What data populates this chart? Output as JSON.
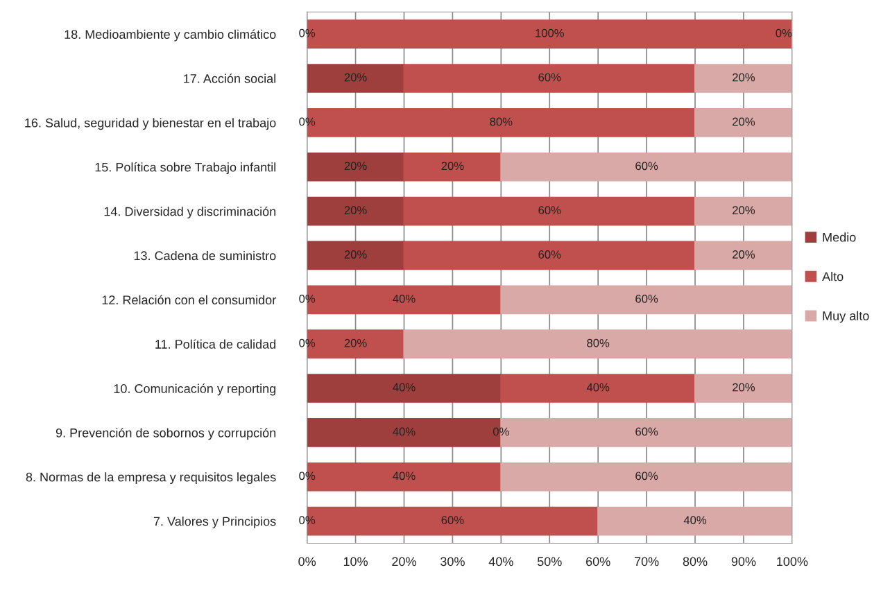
{
  "chart_data": {
    "type": "bar",
    "orientation": "horizontal",
    "stacked": true,
    "categories": [
      "18. Medioambiente y cambio climático",
      "17. Acción social",
      "16. Salud, seguridad y bienestar en el trabajo",
      "15. Política sobre Trabajo infantil",
      "14. Diversidad y discriminación",
      "13. Cadena de suministro",
      "12. Relación con el consumidor",
      "11. Política de calidad",
      "10. Comunicación y reporting",
      "9. Prevención de sobornos y corrupción",
      "8. Normas de la empresa y requisitos legales",
      "7. Valores y Principios"
    ],
    "series": [
      {
        "name": "Medio",
        "color": "#9e3f3d",
        "values": [
          0,
          20,
          0,
          20,
          20,
          20,
          0,
          0,
          40,
          40,
          0,
          0
        ],
        "value_labels": [
          "0%",
          "20%",
          "0%",
          "20%",
          "20%",
          "20%",
          "0%",
          "0%",
          "40%",
          "40%",
          "0%",
          "0%"
        ]
      },
      {
        "name": "Alto",
        "color": "#c0504d",
        "values": [
          100,
          60,
          80,
          20,
          60,
          60,
          40,
          20,
          40,
          0,
          40,
          60
        ],
        "value_labels": [
          "100%",
          "60%",
          "80%",
          "20%",
          "60%",
          "60%",
          "40%",
          "20%",
          "40%",
          "0%",
          "40%",
          "60%"
        ]
      },
      {
        "name": "Muy alto",
        "color": "#d9a9a8",
        "values": [
          0,
          20,
          20,
          60,
          20,
          20,
          60,
          80,
          20,
          60,
          60,
          40
        ],
        "value_labels": [
          "0%",
          "20%",
          "20%",
          "60%",
          "20%",
          "20%",
          "60%",
          "80%",
          "20%",
          "60%",
          "60%",
          "40%"
        ]
      }
    ],
    "xlim": [
      0,
      100
    ],
    "xticks": [
      {
        "value": 0,
        "label": "0%"
      },
      {
        "value": 10,
        "label": "10%"
      },
      {
        "value": 20,
        "label": "20%"
      },
      {
        "value": 30,
        "label": "30%"
      },
      {
        "value": 40,
        "label": "40%"
      },
      {
        "value": 50,
        "label": "50%"
      },
      {
        "value": 60,
        "label": "60%"
      },
      {
        "value": 70,
        "label": "70%"
      },
      {
        "value": 80,
        "label": "80%"
      },
      {
        "value": 90,
        "label": "90%"
      },
      {
        "value": 100,
        "label": "100%"
      }
    ],
    "grid": "x",
    "legend": "right"
  }
}
